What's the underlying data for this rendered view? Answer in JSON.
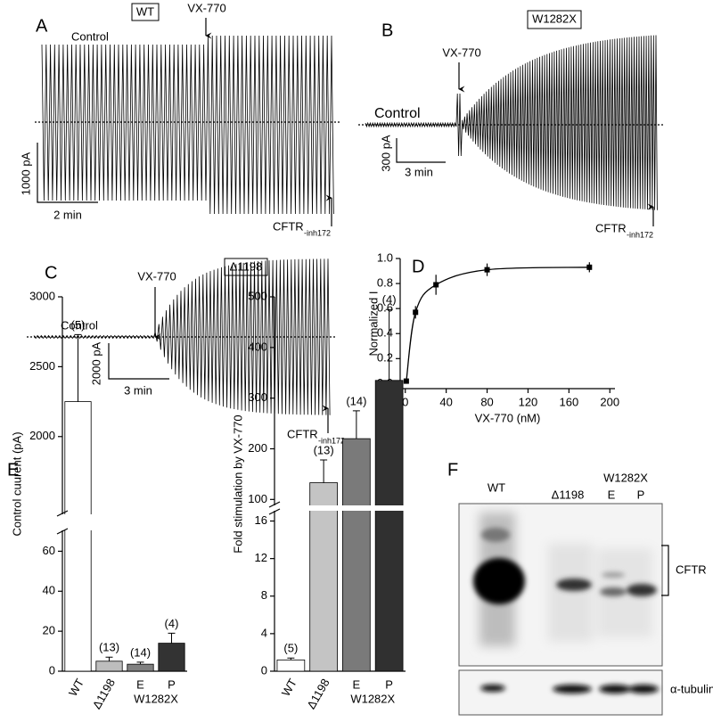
{
  "traces": [
    {
      "panel": "A",
      "label": "WT",
      "drug": "VX-770",
      "control": "Control",
      "scale_y": "1000 pA",
      "scale_x": "2 min",
      "inhibitor": "CFTR",
      "inhibitor_sub": "-inh172"
    },
    {
      "panel": "B",
      "label": "W1282X",
      "drug": "VX-770",
      "control": "Control",
      "scale_y": "300 pA",
      "scale_x": "3 min",
      "inhibitor": "CFTR",
      "inhibitor_sub": "-inh172"
    },
    {
      "panel": "C",
      "label": "Δ1198",
      "drug": "VX-770",
      "control": "Control",
      "scale_y": "2000 pA",
      "scale_x": "3 min",
      "inhibitor": "CFTR",
      "inhibitor_sub": "-inh172"
    }
  ],
  "blot": {
    "panel": "F",
    "lanes": [
      "WT",
      "Δ1198",
      "E",
      "P"
    ],
    "group": "W1282X",
    "bands": [
      "CFTR",
      "α-tubulin"
    ]
  },
  "chart_data": [
    {
      "type": "scatter",
      "panel": "D",
      "xlabel": "VX-770 (nM)",
      "ylabel": "Normalized I",
      "x": [
        1,
        10,
        30,
        80,
        180
      ],
      "values": [
        0.02,
        0.57,
        0.79,
        0.91,
        0.93
      ],
      "errors": [
        0.01,
        0.05,
        0.08,
        0.05,
        0.04
      ],
      "color": "#000000",
      "xlim": [
        -5,
        205
      ],
      "xticks": [
        0,
        40,
        80,
        120,
        160,
        200
      ],
      "ylim": [
        -0.04,
        1.0
      ],
      "yticks": [
        {
          "value": 0,
          "label": "0.0"
        },
        {
          "value": 0.2,
          "label": "0.2"
        },
        {
          "value": 0.4,
          "label": "0.4"
        },
        {
          "value": 0.6,
          "label": "0.6"
        },
        {
          "value": 0.8,
          "label": "0.8"
        },
        {
          "value": 1.0,
          "label": "1.0"
        }
      ]
    },
    {
      "type": "bar",
      "panel": "E",
      "ylabel": "Control cuurent (pA)",
      "categories": [
        "WT",
        "Δ1198",
        "E",
        "P"
      ],
      "groups": [
        {
          "label": "W1282X",
          "categories": [
            "E",
            "P"
          ]
        }
      ],
      "values": [
        2250,
        5,
        3.5,
        14
      ],
      "errors": [
        480,
        2,
        1,
        5
      ],
      "annotations": [
        "(5)",
        "(13)",
        "(14)",
        "(4)"
      ],
      "colors": [
        "#ffffff",
        "#bdbdbd",
        "#808080",
        "#333333"
      ],
      "ylim": [
        0,
        3000
      ],
      "break": [
        70,
        1450
      ],
      "yticks": [
        0,
        20,
        40,
        60,
        2000,
        2500,
        3000
      ]
    },
    {
      "type": "bar",
      "ylabel": "Fold stimulation by VX-770",
      "categories": [
        "WT",
        "Δ1198",
        "E",
        "P"
      ],
      "groups": [
        {
          "label": "W1282X",
          "categories": [
            "E",
            "P"
          ]
        }
      ],
      "values": [
        1.2,
        133,
        220,
        335
      ],
      "errors": [
        0.2,
        45,
        55,
        140
      ],
      "annotations": [
        "(5)",
        "(13)",
        "(14)",
        "(4)"
      ],
      "colors": [
        "#ffffff",
        "#c4c4c4",
        "#7a7a7a",
        "#303030"
      ],
      "ylim": [
        0,
        500
      ],
      "break": [
        17,
        90
      ],
      "yticks": [
        0,
        4,
        8,
        12,
        16,
        100,
        200,
        300,
        400,
        500
      ]
    }
  ]
}
